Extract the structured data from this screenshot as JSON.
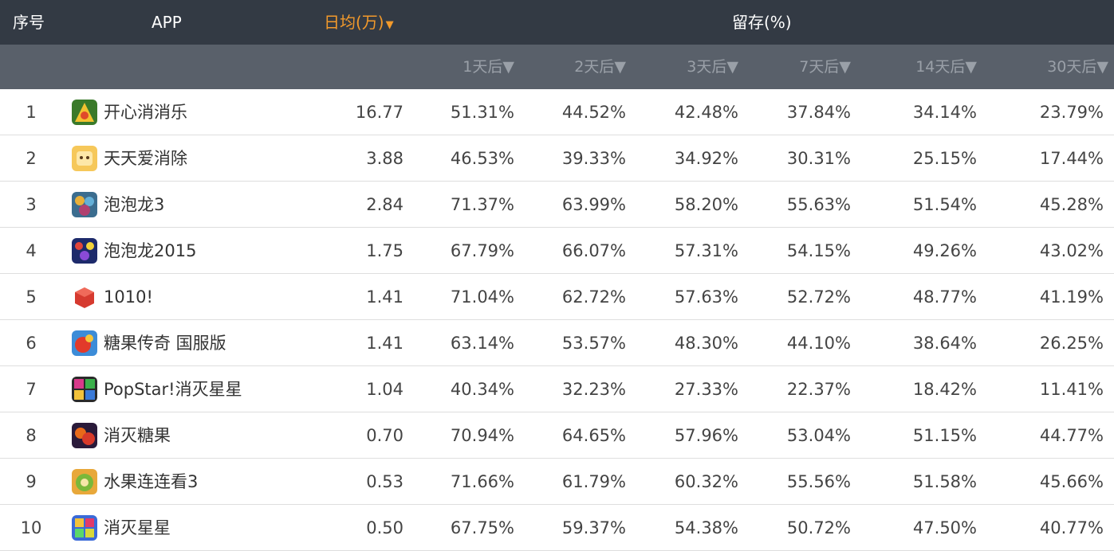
{
  "header": {
    "rank": "序号",
    "app": "APP",
    "daily_avg": "日均(万)",
    "daily_avg_sort_icon": "▼",
    "retention": "留存(%)",
    "retention_cols": [
      "1天后▼",
      "2天后▼",
      "3天后▼",
      "7天后▼",
      "14天后▼",
      "30天后▼"
    ]
  },
  "colors": {
    "header_dark": "#333a44",
    "header_sub": "#59606a",
    "sorted_accent": "#f39a2b"
  },
  "rows": [
    {
      "rank": "1",
      "name": "开心消消乐",
      "icon": "happy-elimination-icon",
      "daily": "16.77",
      "r": [
        "51.31%",
        "44.52%",
        "42.48%",
        "37.84%",
        "34.14%",
        "23.79%"
      ]
    },
    {
      "rank": "2",
      "name": "天天爱消除",
      "icon": "daily-elimination-icon",
      "daily": "3.88",
      "r": [
        "46.53%",
        "39.33%",
        "34.92%",
        "30.31%",
        "25.15%",
        "17.44%"
      ]
    },
    {
      "rank": "3",
      "name": "泡泡龙3",
      "icon": "bubble-dragon-3-icon",
      "daily": "2.84",
      "r": [
        "71.37%",
        "63.99%",
        "58.20%",
        "55.63%",
        "51.54%",
        "45.28%"
      ]
    },
    {
      "rank": "4",
      "name": "泡泡龙2015",
      "icon": "bubble-dragon-2015-icon",
      "daily": "1.75",
      "r": [
        "67.79%",
        "66.07%",
        "57.31%",
        "54.15%",
        "49.26%",
        "43.02%"
      ]
    },
    {
      "rank": "5",
      "name": "1010!",
      "icon": "red-cube-icon",
      "daily": "1.41",
      "r": [
        "71.04%",
        "62.72%",
        "57.63%",
        "52.72%",
        "48.77%",
        "41.19%"
      ]
    },
    {
      "rank": "6",
      "name": "糖果传奇 国服版",
      "icon": "candy-crush-icon",
      "daily": "1.41",
      "r": [
        "63.14%",
        "53.57%",
        "48.30%",
        "44.10%",
        "38.64%",
        "26.25%"
      ]
    },
    {
      "rank": "7",
      "name": "PopStar!消灭星星",
      "icon": "popstar-icon",
      "daily": "1.04",
      "r": [
        "40.34%",
        "32.23%",
        "27.33%",
        "22.37%",
        "18.42%",
        "11.41%"
      ]
    },
    {
      "rank": "8",
      "name": "消灭糖果",
      "icon": "eliminate-candy-icon",
      "daily": "0.70",
      "r": [
        "70.94%",
        "64.65%",
        "57.96%",
        "53.04%",
        "51.15%",
        "44.77%"
      ]
    },
    {
      "rank": "9",
      "name": "水果连连看3",
      "icon": "fruit-link-icon",
      "daily": "0.53",
      "r": [
        "71.66%",
        "61.79%",
        "60.32%",
        "55.56%",
        "51.58%",
        "45.66%"
      ]
    },
    {
      "rank": "10",
      "name": "消灭星星",
      "icon": "eliminate-stars-icon",
      "daily": "0.50",
      "r": [
        "67.75%",
        "59.37%",
        "54.38%",
        "50.72%",
        "47.50%",
        "40.77%"
      ]
    }
  ]
}
